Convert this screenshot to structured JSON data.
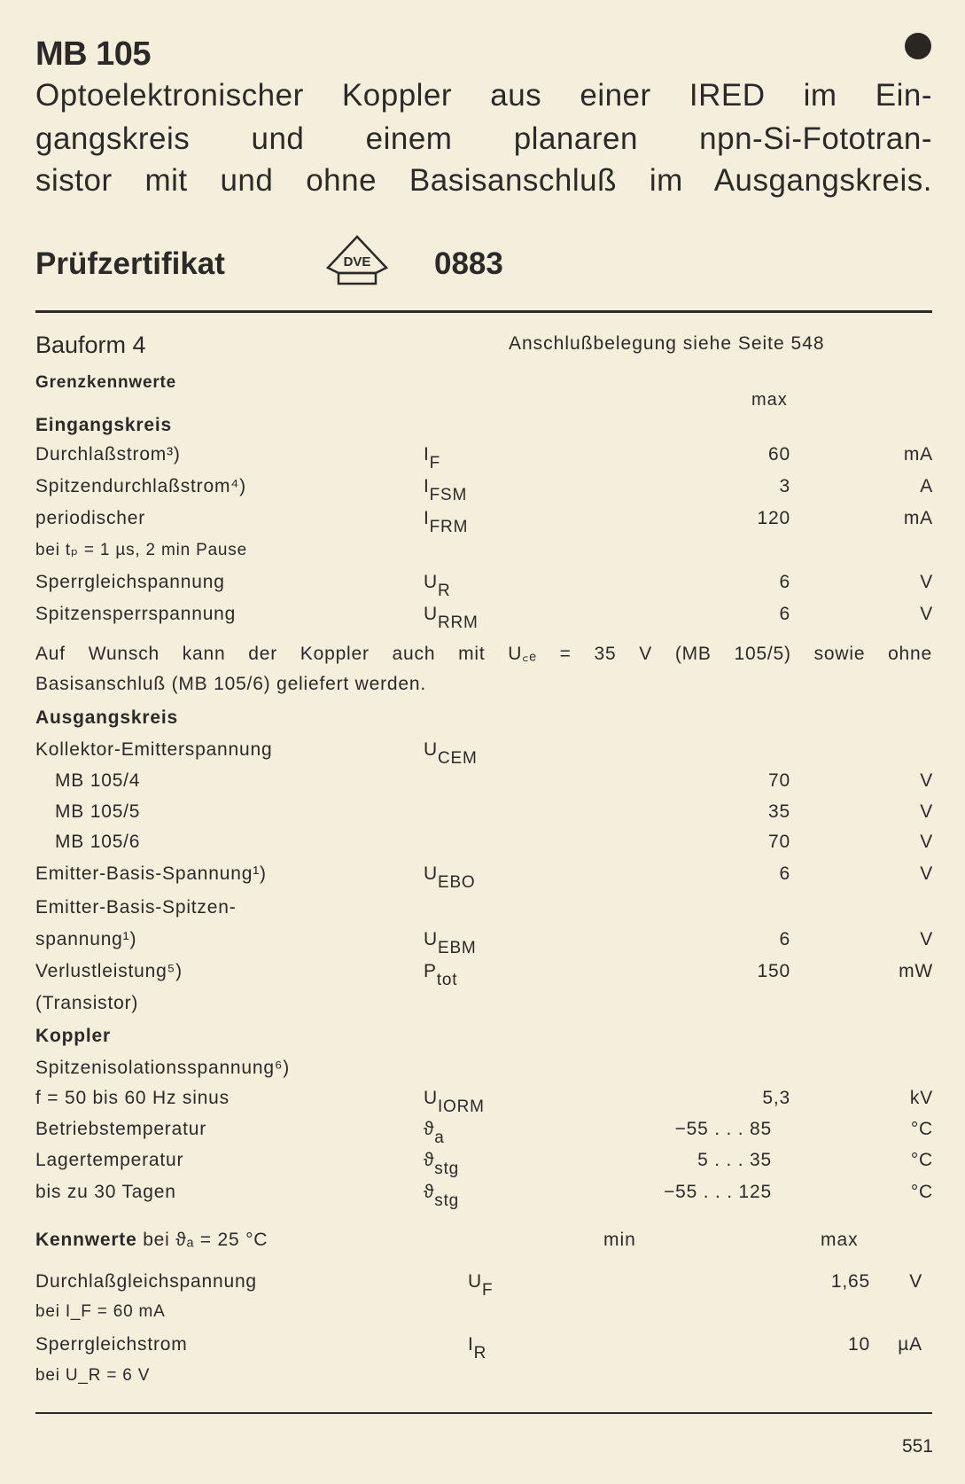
{
  "header": {
    "title": "MB 105",
    "description_lines": [
      "Optoelektronischer Koppler aus einer IRED im Ein-",
      "gangskreis und einem planaren npn-Si-Fototran-",
      "sistor mit und ohne Basisanschluß im Ausgangskreis."
    ],
    "certificate_label": "Prüfzertifikat",
    "certificate_logo_text": "DVE",
    "certificate_number": "0883"
  },
  "package": {
    "bauform": "Bauform 4",
    "pinout_note": "Anschlußbelegung siehe Seite 548"
  },
  "limits": {
    "heading": "Grenzkennwerte",
    "col_max": "max",
    "rows": [
      {
        "label": "Eingangskreis",
        "style": "b"
      },
      {
        "label": "Durchlaßstrom³)",
        "sym": "I",
        "sub": "F",
        "val": "60",
        "unit": "mA"
      },
      {
        "label": "Spitzendurchlaßstrom⁴)",
        "sym": "I",
        "sub": "FSM",
        "val": "3",
        "unit": "A"
      },
      {
        "label": "periodischer",
        "sym": "I",
        "sub": "FRM",
        "val": "120",
        "unit": "mA"
      },
      {
        "label": "bei tₚ = 1 µs, 2 min Pause",
        "style": "small"
      },
      {
        "label": "Sperrgleichspannung",
        "sym": "U",
        "sub": "R",
        "val": "6",
        "unit": "V"
      },
      {
        "label": "Spitzensperrspannung",
        "sym": "U",
        "sub": "RRM",
        "val": "6",
        "unit": "V"
      },
      {
        "full": "Auf Wunsch kann der Koppler auch mit U꜀ₑ = 35 V (MB 105/5) sowie ohne"
      },
      {
        "label": "Basisanschluß (MB 105/6) geliefert werden."
      },
      {
        "label": "Ausgangskreis",
        "style": "b"
      },
      {
        "label": "Kollektor-Emitterspannung",
        "sym": "U",
        "sub": "CEM"
      },
      {
        "label": "MB 105/4",
        "style": "ind",
        "val": "70",
        "unit": "V"
      },
      {
        "label": "MB 105/5",
        "style": "ind",
        "val": "35",
        "unit": "V"
      },
      {
        "label": "MB 105/6",
        "style": "ind",
        "val": "70",
        "unit": "V"
      },
      {
        "label": "Emitter-Basis-Spannung¹)",
        "sym": "U",
        "sub": "EBO",
        "val": "6",
        "unit": "V"
      },
      {
        "label": "Emitter-Basis-Spitzen-"
      },
      {
        "label": "spannung¹)",
        "sym": "U",
        "sub": "EBM",
        "val": "6",
        "unit": "V"
      },
      {
        "label": "Verlustleistung⁵)",
        "sym": "P",
        "sub": "tot",
        "val": "150",
        "unit": "mW"
      },
      {
        "label": "(Transistor)"
      },
      {
        "label": "Koppler",
        "style": "b"
      },
      {
        "label": "Spitzenisolationsspannung⁶)"
      },
      {
        "label": "f = 50 bis 60 Hz sinus",
        "sym": "U",
        "sub": "IORM",
        "val": "5,3",
        "unit": "kV"
      },
      {
        "label": "Betriebstemperatur",
        "sym": "ϑ",
        "sub": "a",
        "val": "−55 . . . 85",
        "unit": "°C",
        "range": true
      },
      {
        "label": "Lagertemperatur",
        "sym": "ϑ",
        "sub": "stg",
        "val": "5 . . . 35",
        "unit": "°C",
        "range": true
      },
      {
        "label": "bis zu 30 Tagen",
        "sym": "ϑ",
        "sub": "stg",
        "val": "−55 . . . 125",
        "unit": "°C",
        "range": true
      }
    ]
  },
  "characteristics": {
    "heading_bold": "Kennwerte",
    "heading_rest": "bei ϑₐ = 25 °C",
    "col_min": "min",
    "col_max": "max",
    "rows": [
      {
        "label": "Durchlaßgleichspannung",
        "sym": "U",
        "sub": "F",
        "val": "1,65",
        "unit": "V"
      },
      {
        "label": "bei I_F = 60 mA",
        "style": "small"
      },
      {
        "label": "Sperrgleichstrom",
        "sym": "I",
        "sub": "R",
        "val": "10",
        "unit": "µA"
      },
      {
        "label": "bei U_R = 6 V",
        "style": "small"
      }
    ]
  },
  "footer": {
    "page_number": "551"
  }
}
